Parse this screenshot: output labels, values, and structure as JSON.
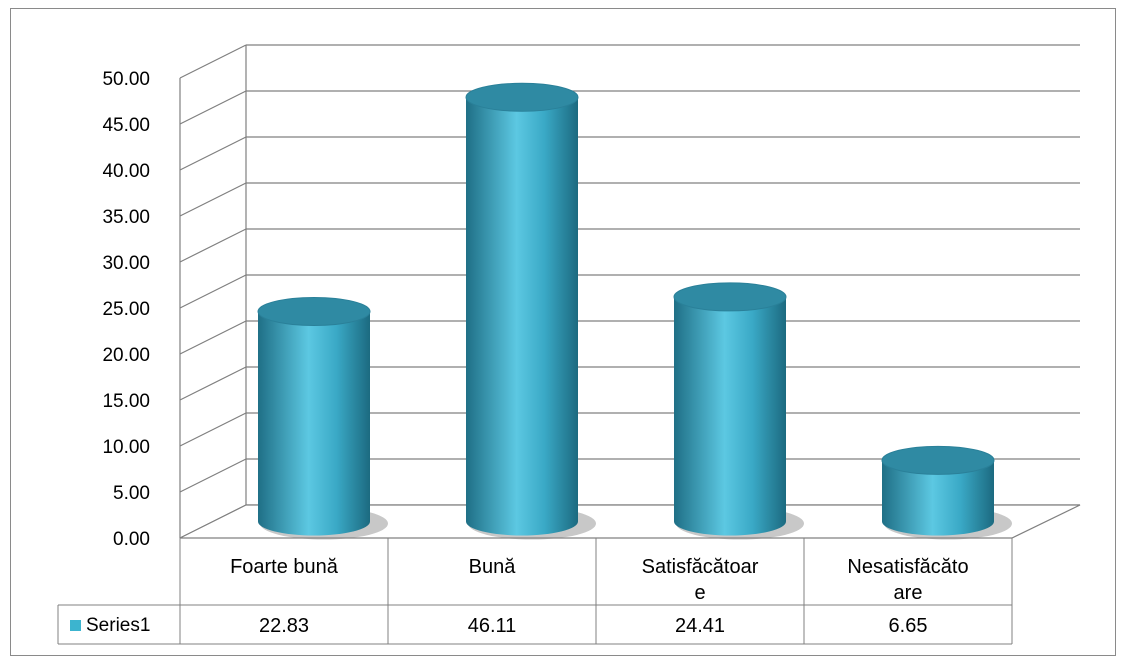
{
  "chart_data": {
    "type": "bar",
    "style": "3d-cylinder",
    "categories": [
      "Foarte bună",
      "Bună",
      "Satisfăcătoare",
      "Nesatisfăcătoare"
    ],
    "category_label_lines": [
      [
        "Foarte bună"
      ],
      [
        "Bună"
      ],
      [
        "Satisfăcătoar",
        "e"
      ],
      [
        "Nesatisfăcăto",
        "are"
      ]
    ],
    "series": [
      {
        "name": "Series1",
        "values": [
          22.83,
          46.11,
          24.41,
          6.65
        ],
        "value_labels": [
          "22.83",
          "46.11",
          "24.41",
          "6.65"
        ]
      }
    ],
    "yticks": [
      "0.00",
      "5.00",
      "10.00",
      "15.00",
      "20.00",
      "25.00",
      "30.00",
      "35.00",
      "40.00",
      "45.00",
      "50.00"
    ],
    "ylim": [
      0,
      50
    ],
    "grid": true,
    "legend": "data-table-left",
    "data_table": true,
    "title": "",
    "xlabel": "",
    "ylabel": "",
    "colors": {
      "bar": "#3aa9c6",
      "bar_dark": "#1f6f86",
      "bar_top": "#2f8aa3",
      "grid": "#808080",
      "legend_key": "#3cb4cf"
    }
  }
}
